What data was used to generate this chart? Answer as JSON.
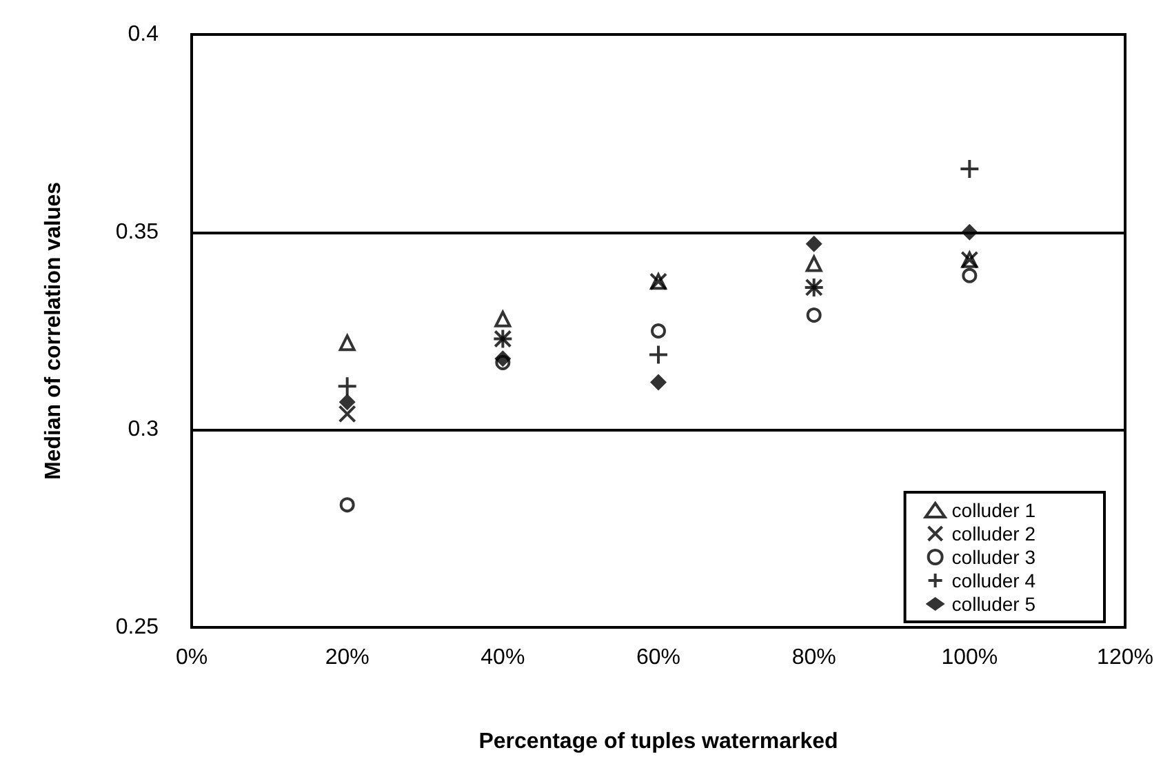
{
  "chart_data": {
    "type": "scatter",
    "xlabel": "Percentage of tuples watermarked",
    "ylabel": "Median of correlation values",
    "x": [
      20,
      40,
      60,
      80,
      100
    ],
    "series": [
      {
        "name": "colluder 1",
        "color": "#000000",
        "marker": "triangle",
        "values": [
          0.322,
          0.328,
          0.3375,
          0.342,
          0.343
        ]
      },
      {
        "name": "colluder 2",
        "color": "#000000",
        "marker": "cross",
        "values": [
          0.304,
          0.323,
          0.3375,
          0.336,
          0.343
        ]
      },
      {
        "name": "colluder 3",
        "color": "#000000",
        "marker": "circle",
        "values": [
          0.281,
          0.317,
          0.325,
          0.329,
          0.339
        ]
      },
      {
        "name": "colluder 4",
        "color": "#000000",
        "marker": "plus",
        "values": [
          0.311,
          0.323,
          0.319,
          0.336,
          0.366
        ]
      },
      {
        "name": "colluder 5",
        "color": "#000000",
        "marker": "diamond",
        "values": [
          0.307,
          0.318,
          0.312,
          0.347,
          0.35
        ]
      }
    ],
    "xlim": [
      0,
      120
    ],
    "xticks": [
      {
        "value": 0,
        "label": "0%"
      },
      {
        "value": 20,
        "label": "20%"
      },
      {
        "value": 40,
        "label": "40%"
      },
      {
        "value": 60,
        "label": "60%"
      },
      {
        "value": 80,
        "label": "80%"
      },
      {
        "value": 100,
        "label": "100%"
      },
      {
        "value": 120,
        "label": "120%"
      }
    ],
    "ylim": [
      0.25,
      0.4
    ],
    "yticks": [
      0.25,
      0.3,
      0.35,
      0.4
    ],
    "grid": "y",
    "legend": "bottom right"
  }
}
